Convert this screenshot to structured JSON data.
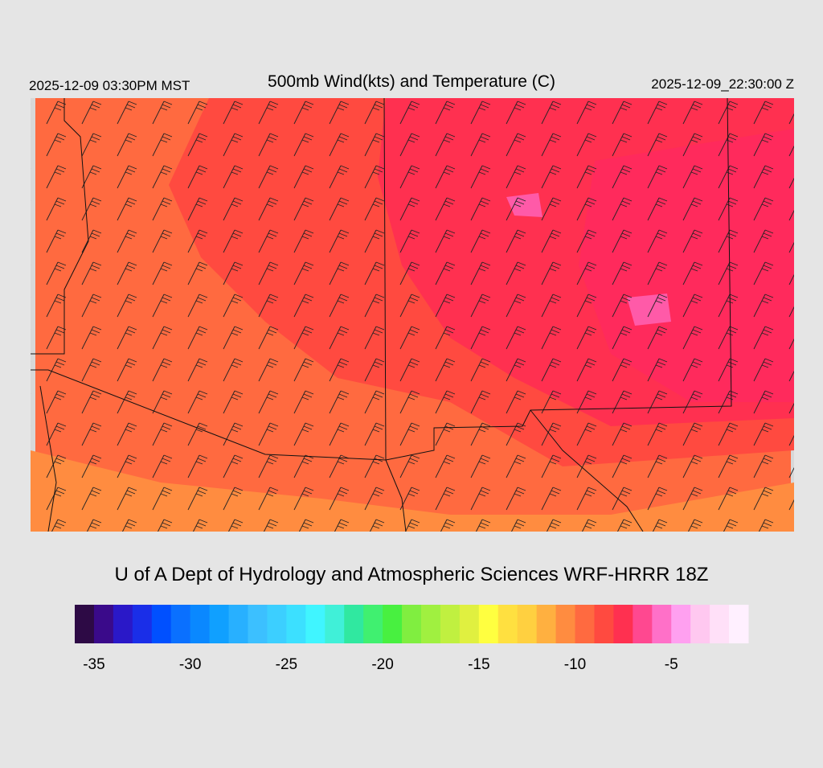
{
  "header": {
    "left": "2025-12-09 03:30PM MST",
    "title": "500mb Wind(kts) and Temperature (C)",
    "right": "2025-12-09_22:30:00 Z"
  },
  "footer": "U of A Dept of Hydrology and Atmospheric Sciences WRF-HRRR 18Z",
  "colorbar": {
    "range": [
      -36,
      -1
    ],
    "ticks": [
      -35,
      -30,
      -25,
      -20,
      -15,
      -10,
      -5
    ],
    "colors": [
      "#2d0a45",
      "#3a0a8a",
      "#2a18c8",
      "#1a2ee8",
      "#0050ff",
      "#0a70ff",
      "#0a88ff",
      "#10a0ff",
      "#28b0ff",
      "#3cc0ff",
      "#3ccfff",
      "#3ce0ff",
      "#40f5ff",
      "#40f0d8",
      "#30e8a0",
      "#40f070",
      "#48f040",
      "#80ee40",
      "#a0f040",
      "#c0f040",
      "#e0f040",
      "#ffff40",
      "#ffe040",
      "#ffd040",
      "#ffb040",
      "#ff8c40",
      "#ff6a40",
      "#ff4a40",
      "#ff3050",
      "#ff4890",
      "#ff70c8",
      "#ffa0f0",
      "#ffc8f0",
      "#ffe0f8",
      "#fff0ff"
    ]
  }
}
